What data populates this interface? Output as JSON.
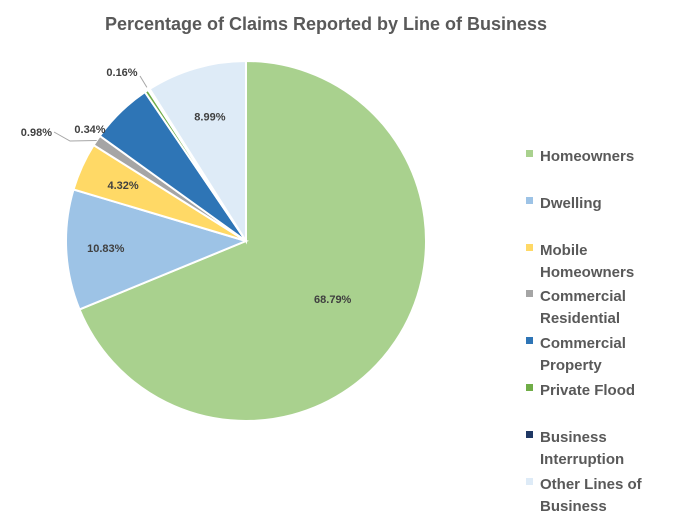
{
  "chart_data": {
    "type": "pie",
    "title": "Percentage of Claims Reported by Line of Business",
    "categories": [
      "Homeowners",
      "Dwelling",
      "Mobile Homeowners",
      "Commercial Residential",
      "Commercial Property",
      "Private Flood",
      "Business Interruption",
      "Other Lines of Business"
    ],
    "legend_labels": [
      [
        "Homeowners"
      ],
      [
        "Dwelling"
      ],
      [
        "Mobile",
        "Homeowners"
      ],
      [
        "Commercial",
        "Residential"
      ],
      [
        "Commercial",
        "Property"
      ],
      [
        "Private Flood"
      ],
      [
        "Business",
        "Interruption"
      ],
      [
        "Other Lines of",
        "Business"
      ]
    ],
    "values": [
      68.79,
      10.83,
      4.32,
      0.98,
      5.59,
      0.34,
      0.16,
      8.99
    ],
    "data_labels": [
      "68.79%",
      "10.83%",
      "4.32%",
      "0.98%",
      "",
      "0.34%",
      "0.16%",
      "8.99%"
    ],
    "colors": [
      "#a9d18e",
      "#9dc3e6",
      "#ffd966",
      "#a5a5a5",
      "#2e75b6",
      "#70ad47",
      "#1f3864",
      "#deebf7"
    ],
    "legend_position": "right",
    "start_angle": "12 o'clock",
    "direction": "clockwise"
  }
}
